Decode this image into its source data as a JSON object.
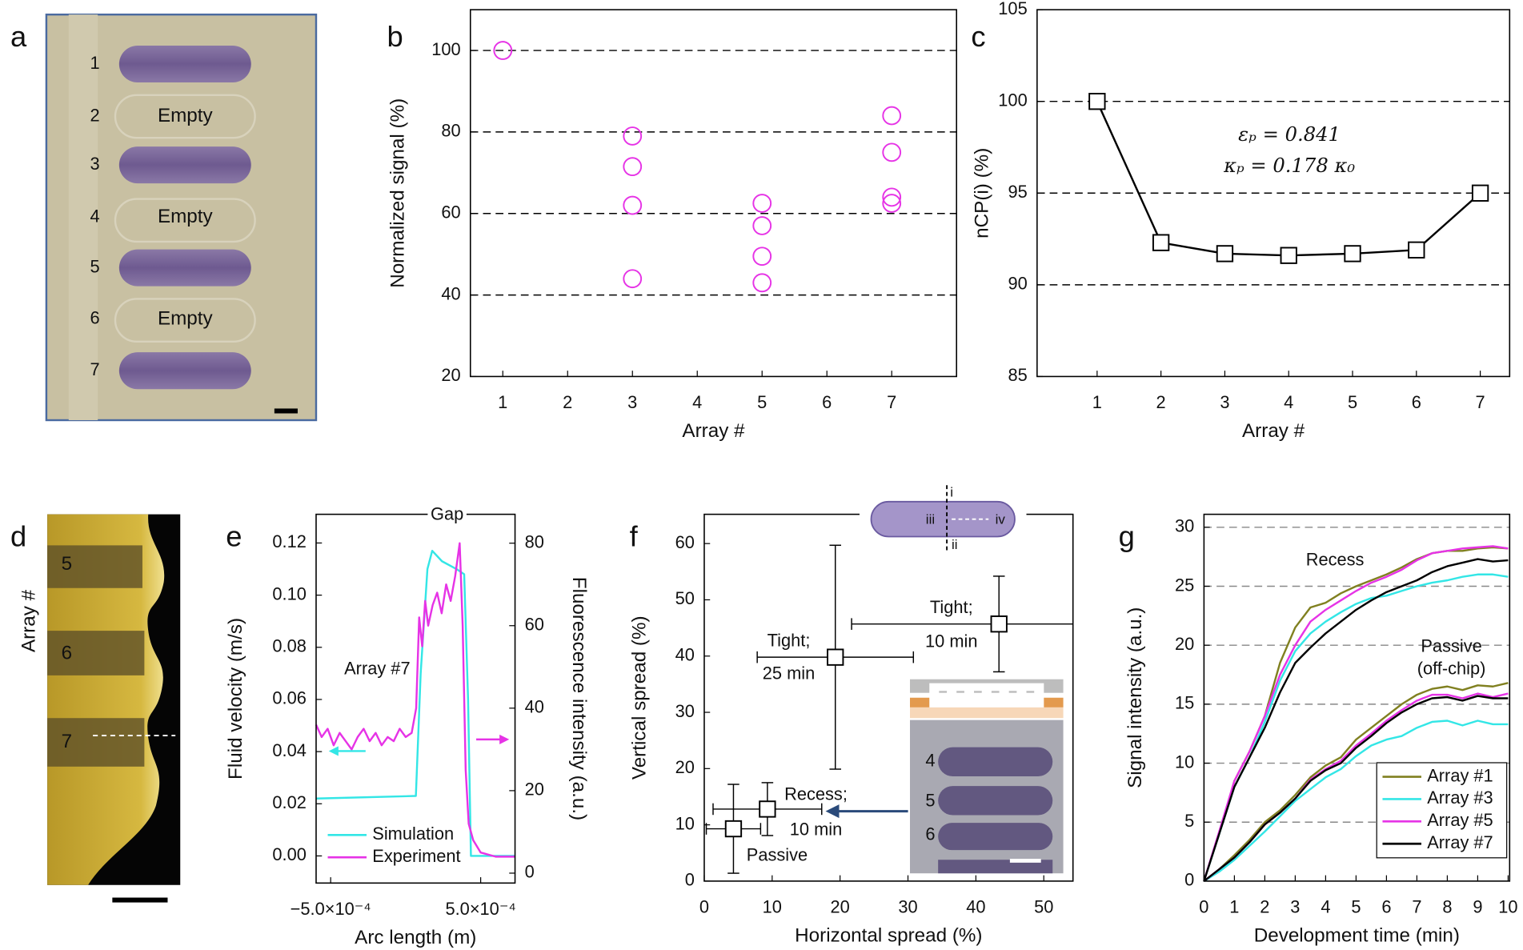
{
  "panel_labels": [
    "a",
    "b",
    "c",
    "d",
    "e",
    "f",
    "g"
  ],
  "panel_a": {
    "rows": [
      "1",
      "2",
      "3",
      "4",
      "5",
      "6",
      "7"
    ],
    "empty": [
      "Empty",
      "Empty",
      "Empty"
    ]
  },
  "panel_d": {
    "axis_label": "Array #",
    "numbers": [
      "5",
      "6",
      "7"
    ]
  },
  "chart_data": [
    {
      "type": "scatter",
      "marker": "circle",
      "color": "#e633e6",
      "x": [
        1,
        3,
        3,
        3,
        3,
        5,
        5,
        5,
        5,
        7,
        7,
        7,
        7
      ],
      "values": [
        100,
        79,
        71.5,
        62,
        44,
        62.5,
        57,
        49.5,
        43,
        84,
        75,
        64,
        62.5
      ],
      "xlim": [
        0.5,
        8
      ],
      "xticks": [
        1,
        2,
        3,
        4,
        5,
        6,
        7
      ],
      "ylim": [
        20,
        110
      ],
      "yticks": [
        20,
        40,
        60,
        80,
        100
      ],
      "grid": true,
      "grid_color": "#000000",
      "xlabel": "Array #",
      "ylabel": "Normalized signal (%)"
    },
    {
      "type": "line",
      "marker": "square",
      "color": "#000000",
      "x": [
        1,
        2,
        3,
        4,
        5,
        6,
        7
      ],
      "values": [
        100,
        92.3,
        91.7,
        91.6,
        91.7,
        91.9,
        95
      ],
      "xlim": [
        0.06,
        7.46
      ],
      "xticks": [
        1,
        2,
        3,
        4,
        5,
        6,
        7
      ],
      "ylim": [
        85,
        105
      ],
      "yticks": [
        85,
        90,
        95,
        100,
        105
      ],
      "grid": true,
      "grid_color": "#000000",
      "xlabel": "Array #",
      "ylabel": "nCP(i) (%)",
      "annotations": [
        "εₚ = 0.841",
        "κₚ = 0.178 κ₀"
      ]
    },
    {
      "type": "line",
      "series": [
        {
          "name": "Simulation",
          "color": "#33e6e6",
          "x": [
            -0.000597,
            6.8e-05,
            0.0001,
            0.000145,
            0.000177,
            0.000242,
            0.000339,
            0.00039,
            0.000416,
            0.000435,
            0.000726
          ],
          "values": [
            0.022,
            0.023,
            0.07,
            0.11,
            0.117,
            0.113,
            0.11,
            0.108,
            0.06,
            0,
            0
          ]
        },
        {
          "name": "Experiment",
          "color": "#e633e6",
          "axis": "y2",
          "x": [
            -0.000597,
            -0.00056,
            -0.00052,
            -0.00048,
            -0.00044,
            -0.0004,
            -0.00036,
            -0.00032,
            -0.00028,
            -0.00024,
            -0.0002,
            -0.00016,
            -0.00012,
            -8e-05,
            -4e-05,
            0,
            4e-05,
            7e-05,
            9e-05,
            0.00011,
            0.00013,
            0.00015,
            0.00018,
            0.00021,
            0.00024,
            0.00027,
            0.0003,
            0.00033,
            0.00036,
            0.00038,
            0.0004,
            0.00042,
            0.00045,
            0.0005,
            0.0006,
            0.000726
          ],
          "values": [
            36,
            33,
            35,
            31,
            34,
            32,
            30,
            33,
            35,
            32,
            34,
            31,
            33,
            32,
            35,
            33,
            34,
            40,
            62,
            55,
            66,
            60,
            65,
            68,
            63,
            70,
            66,
            72,
            80,
            60,
            25,
            12,
            8,
            5,
            4,
            4
          ]
        }
      ],
      "xlim": [
        -0.000597,
        0.000729
      ],
      "xticks": [
        {
          "value": -0.0005,
          "label": "−5.0×10⁻⁴"
        },
        {
          "value": 0.0005,
          "label": "5.0×10⁻⁴"
        }
      ],
      "ylim": [
        -0.0104,
        0.131
      ],
      "yticks": [
        {
          "value": 0,
          "label": "0.00"
        },
        {
          "value": 0.02,
          "label": "0.02"
        },
        {
          "value": 0.04,
          "label": "0.04"
        },
        {
          "value": 0.06,
          "label": "0.06"
        },
        {
          "value": 0.08,
          "label": "0.08"
        },
        {
          "value": 0.1,
          "label": "0.10"
        },
        {
          "value": 0.12,
          "label": "0.12"
        }
      ],
      "y2lim": [
        -2.4,
        87
      ],
      "y2ticks": [
        0,
        20,
        40,
        60,
        80
      ],
      "grid": false,
      "legend": "lower left",
      "legend_frame": false,
      "xlabel": "Arc length (m)",
      "ylabel": "Fluid velocity (m/s)",
      "y2label": "Fluorescence intensity (a.u.)",
      "annotations": [
        "Gap",
        "Array #7"
      ]
    },
    {
      "type": "scatter",
      "marker": "square",
      "color": "#000000",
      "x": [
        4.3,
        9.3,
        19.3,
        43.4
      ],
      "values": [
        9.3,
        12.8,
        39.8,
        45.7
      ],
      "xerr": [
        4,
        8,
        11.5,
        21.7
      ],
      "yerr": [
        7.9,
        4.7,
        19.9,
        8.5
      ],
      "point_labels": [
        [
          "Passive"
        ],
        [
          "Recess;",
          "10 min"
        ],
        [
          "Tight;",
          "25 min"
        ],
        [
          "Tight;",
          "10 min"
        ]
      ],
      "xlim": [
        0,
        54.3
      ],
      "xticks": [
        0,
        10,
        20,
        30,
        40,
        50
      ],
      "ylim": [
        0,
        65.2
      ],
      "yticks": [
        0,
        10,
        20,
        30,
        40,
        50,
        60
      ],
      "grid": false,
      "xlabel": "Horizontal spread (%)",
      "ylabel": "Vertical spread (%)",
      "inset_labels": [
        "i",
        "ii",
        "iii",
        "iv"
      ],
      "micrograph_labels": [
        "4",
        "5",
        "6"
      ]
    },
    {
      "type": "line",
      "x": [
        0,
        0.5,
        1,
        1.5,
        2,
        2.5,
        3,
        3.5,
        4,
        4.5,
        5,
        5.5,
        6,
        6.5,
        7,
        7.5,
        8,
        8.5,
        9,
        9.5,
        10
      ],
      "series": [
        {
          "name": "Array #1",
          "color": "#808020",
          "values": [
            0,
            4,
            8.5,
            11,
            14,
            18.5,
            21.5,
            23.2,
            23.6,
            24.4,
            25,
            25.5,
            26,
            26.6,
            27.3,
            27.8,
            28,
            28,
            28.2,
            28.3,
            28.2
          ],
          "values_passive": [
            0,
            1,
            2.2,
            3.5,
            5,
            6,
            7.3,
            8.8,
            9.8,
            10.5,
            12,
            13,
            14,
            15,
            15.8,
            16.3,
            16.5,
            16.2,
            16.6,
            16.5,
            16.8
          ]
        },
        {
          "name": "Array #3",
          "color": "#33e6e6",
          "values": [
            0,
            4,
            8,
            10.5,
            13.5,
            17,
            19.5,
            21,
            22,
            22.8,
            23.5,
            24,
            24.2,
            24.6,
            25,
            25.3,
            25.5,
            25.8,
            26,
            26,
            25.8
          ],
          "values_passive": [
            0,
            0.8,
            1.8,
            3,
            4.2,
            5.5,
            6.8,
            7.8,
            8.8,
            9.5,
            10.6,
            11.5,
            12,
            12.3,
            13,
            13.5,
            13.6,
            13.2,
            13.6,
            13.3,
            13.3
          ]
        },
        {
          "name": "Array #5",
          "color": "#e633e6",
          "values": [
            0,
            4.2,
            8.5,
            11,
            14,
            17.5,
            20,
            22,
            23,
            23.8,
            24.6,
            25.3,
            25.8,
            26.4,
            27.2,
            27.8,
            28,
            28.2,
            28.3,
            28.4,
            28.2
          ],
          "values_passive": [
            0,
            1,
            2,
            3.3,
            4.8,
            5.8,
            7,
            8.6,
            9.5,
            10.2,
            11.5,
            12.5,
            13.6,
            14.5,
            15.3,
            15.8,
            15.8,
            15.5,
            15.9,
            15.6,
            15.9
          ]
        },
        {
          "name": "Array #7",
          "color": "#000000",
          "values": [
            0,
            4,
            8,
            10.5,
            13,
            16,
            18.5,
            19.8,
            21,
            22,
            23,
            23.8,
            24.5,
            25,
            25.5,
            26.2,
            26.7,
            27,
            27.3,
            27.1,
            27.2
          ],
          "values_passive": [
            0,
            1,
            2,
            3.3,
            4.8,
            5.8,
            7,
            8.5,
            9.4,
            10,
            11.3,
            12.3,
            13.4,
            14.3,
            15,
            15.5,
            15.6,
            15.3,
            15.7,
            15.5,
            15.5
          ]
        }
      ],
      "xlim": [
        0,
        10.05
      ],
      "xticks": [
        0,
        1,
        2,
        3,
        4,
        5,
        6,
        7,
        8,
        9,
        10
      ],
      "ylim": [
        0,
        31.1
      ],
      "yticks": [
        0,
        5,
        10,
        15,
        20,
        25,
        30
      ],
      "grid": true,
      "grid_color": "#888888",
      "legend": "lower right",
      "legend_frame": true,
      "xlabel": "Development time (min)",
      "ylabel": "Signal intensity (a.u.)",
      "annotations": [
        "Recess",
        "Passive",
        "(off-chip)"
      ]
    }
  ]
}
